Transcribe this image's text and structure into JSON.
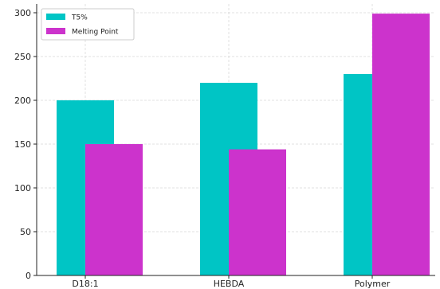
{
  "chart_data": {
    "type": "bar",
    "title": "",
    "xlabel": "",
    "ylabel": "",
    "categories": [
      "D18:1",
      "HEBDA",
      "Polymer"
    ],
    "series": [
      {
        "name": "T5%",
        "values": [
          200,
          220,
          230
        ],
        "color": "#00c5c5"
      },
      {
        "name": "Melting Point",
        "values": [
          150,
          144,
          299
        ],
        "color": "#cc33cc"
      }
    ],
    "ylim": [
      0,
      310
    ],
    "yticks": [
      0,
      50,
      100,
      150,
      200,
      250,
      300
    ],
    "grid": true,
    "legend": "top-left"
  }
}
